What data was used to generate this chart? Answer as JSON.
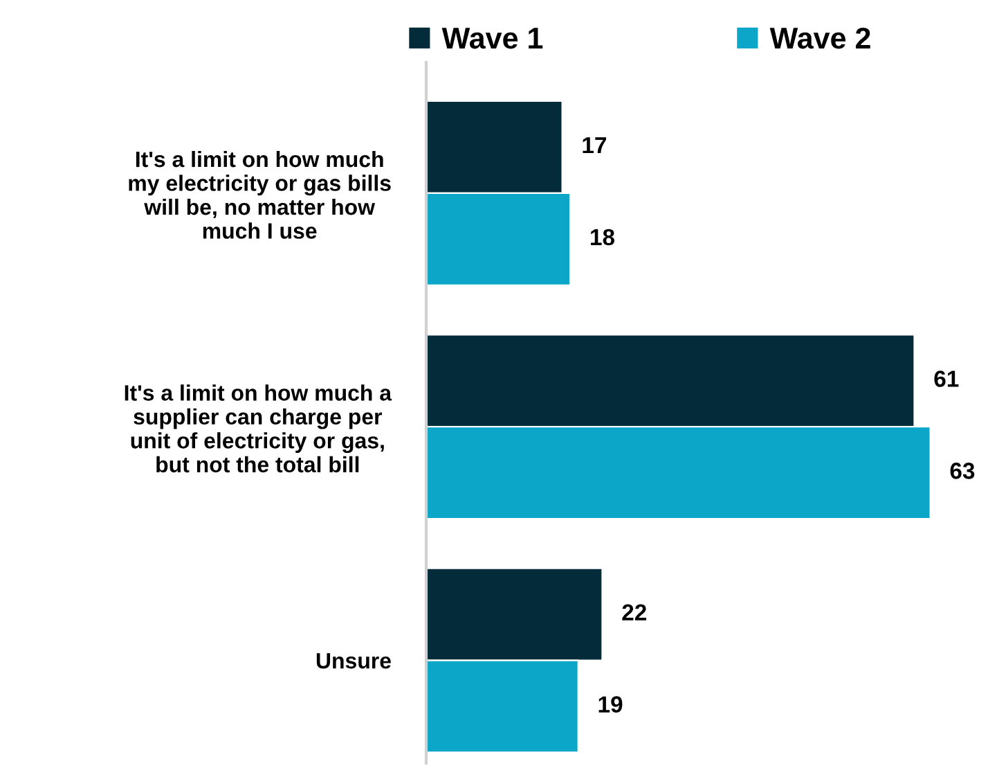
{
  "chart_data": {
    "type": "bar",
    "orientation": "horizontal",
    "categories": [
      "It's a limit on how much\nmy electricity or gas bills\nwill be, no matter how\nmuch I use",
      "It's a limit on how much a\nsupplier can charge per\nunit of electricity or gas,\nbut not the total bill",
      "Unsure"
    ],
    "series": [
      {
        "name": "Wave 1",
        "color": "#032b3a",
        "values": [
          17,
          61,
          22
        ]
      },
      {
        "name": "Wave 2",
        "color": "#0ba6c8",
        "values": [
          18,
          63,
          19
        ]
      }
    ],
    "data_labels": true,
    "legend": "top",
    "tick_labels": "y"
  }
}
